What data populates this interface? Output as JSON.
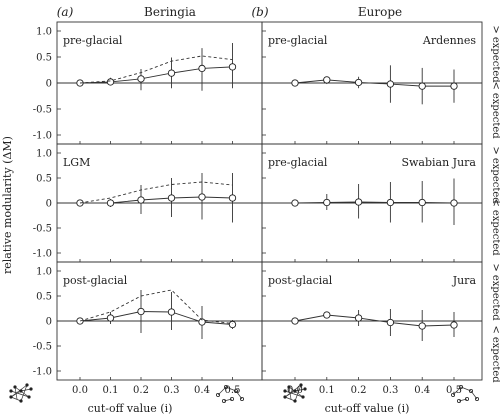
{
  "figure": {
    "y_axis_label": "relative modularity (ΔM)",
    "right_top": "> expected",
    "right_bottom": "< expected",
    "x_axis_label": "cut-off value (i)"
  },
  "chart_data": [
    {
      "type": "line",
      "column": "(a)",
      "column_title": "Beringia",
      "panel_label": "pre-glacial",
      "site": "",
      "x": [
        0.0,
        0.1,
        0.2,
        0.3,
        0.4,
        0.5
      ],
      "xticks": [
        "0.0",
        "0.1",
        "0.2",
        "0.3",
        "0.4",
        "0.5"
      ],
      "ylim": [
        -1.0,
        1.0
      ],
      "yticks": [
        "1.0",
        "0.5",
        "0",
        "-0.5",
        "-1.0"
      ],
      "series": [
        {
          "style": "solid-circles",
          "values": [
            0.0,
            0.02,
            0.08,
            0.19,
            0.28,
            0.31
          ],
          "err_low": [
            0.0,
            -0.03,
            -0.14,
            -0.1,
            -0.15,
            -0.1
          ],
          "err_high": [
            0.0,
            0.1,
            0.27,
            0.49,
            0.67,
            0.77
          ]
        },
        {
          "style": "dashed",
          "values": [
            0.0,
            0.04,
            0.2,
            0.42,
            0.52,
            0.45
          ]
        }
      ]
    },
    {
      "type": "line",
      "column": "(b)",
      "column_title": "Europe",
      "panel_label": "pre-glacial",
      "site": "Ardennes",
      "x": [
        0.0,
        0.1,
        0.2,
        0.3,
        0.4,
        0.5
      ],
      "xticks": [
        "0.0",
        "0.1",
        "0.2",
        "0.3",
        "0.4",
        "0.5"
      ],
      "ylim": [
        -1.0,
        1.0
      ],
      "yticks": [
        "1.0",
        "0.5",
        "0",
        "-0.5",
        "-1.0"
      ],
      "series": [
        {
          "style": "solid-circles",
          "values": [
            0.0,
            0.06,
            0.01,
            -0.02,
            -0.06,
            -0.06
          ],
          "err_low": [
            0.0,
            -0.02,
            -0.1,
            -0.38,
            -0.41,
            -0.38
          ],
          "err_high": [
            0.0,
            0.12,
            0.12,
            0.34,
            0.29,
            0.26
          ]
        }
      ]
    },
    {
      "type": "line",
      "column": "(a)",
      "column_title": "Beringia",
      "panel_label": "LGM",
      "site": "",
      "x": [
        0.0,
        0.1,
        0.2,
        0.3,
        0.4,
        0.5
      ],
      "xticks": [
        "0.0",
        "0.1",
        "0.2",
        "0.3",
        "0.4",
        "0.5"
      ],
      "ylim": [
        -1.0,
        1.0
      ],
      "yticks": [
        "1.0",
        "0.5",
        "0",
        "-0.5",
        "-1.0"
      ],
      "series": [
        {
          "style": "solid-circles",
          "values": [
            0.0,
            0.0,
            0.06,
            0.1,
            0.12,
            0.1
          ],
          "err_low": [
            0.0,
            -0.08,
            -0.22,
            -0.28,
            -0.33,
            -0.39
          ],
          "err_high": [
            0.0,
            0.08,
            0.36,
            0.5,
            0.6,
            0.6
          ]
        },
        {
          "style": "dashed",
          "values": [
            0.0,
            0.1,
            0.26,
            0.37,
            0.42,
            0.36
          ]
        }
      ]
    },
    {
      "type": "line",
      "column": "(b)",
      "column_title": "Europe",
      "panel_label": "pre-glacial",
      "site": "Swabian Jura",
      "x": [
        0.0,
        0.1,
        0.2,
        0.3,
        0.4,
        0.5
      ],
      "xticks": [
        "0.0",
        "0.1",
        "0.2",
        "0.3",
        "0.4",
        "0.5"
      ],
      "ylim": [
        -1.0,
        1.0
      ],
      "yticks": [
        "1.0",
        "0.5",
        "0",
        "-0.5",
        "-1.0"
      ],
      "series": [
        {
          "style": "solid-circles",
          "values": [
            0.0,
            0.01,
            0.02,
            0.01,
            0.01,
            0.0
          ],
          "err_low": [
            0.0,
            -0.14,
            -0.31,
            -0.39,
            -0.39,
            -0.44
          ],
          "err_high": [
            0.0,
            0.18,
            0.38,
            0.42,
            0.44,
            0.49
          ]
        }
      ]
    },
    {
      "type": "line",
      "column": "(a)",
      "column_title": "Beringia",
      "panel_label": "post-glacial",
      "site": "",
      "x": [
        0.0,
        0.1,
        0.2,
        0.3,
        0.4,
        0.5
      ],
      "xticks": [
        "0.0",
        "0.1",
        "0.2",
        "0.3",
        "0.4",
        "0.5"
      ],
      "ylim": [
        -1.0,
        1.0
      ],
      "yticks": [
        "1.0",
        "0.5",
        "0",
        "-0.5",
        "-1.0"
      ],
      "series": [
        {
          "style": "solid-circles",
          "values": [
            0.0,
            0.06,
            0.19,
            0.18,
            -0.02,
            -0.07
          ],
          "err_low": [
            0.0,
            -0.06,
            -0.24,
            -0.18,
            -0.36,
            -0.16
          ],
          "err_high": [
            0.0,
            0.18,
            0.62,
            0.58,
            0.3,
            0.02
          ]
        },
        {
          "style": "dashed",
          "values": [
            0.0,
            0.18,
            0.5,
            0.62,
            0.02,
            -0.05
          ]
        }
      ]
    },
    {
      "type": "line",
      "column": "(b)",
      "column_title": "Europe",
      "panel_label": "post-glacial",
      "site": "Jura",
      "x": [
        0.0,
        0.1,
        0.2,
        0.3,
        0.4,
        0.5
      ],
      "xticks": [
        "0.0",
        "0.1",
        "0.2",
        "0.3",
        "0.4",
        "0.5"
      ],
      "ylim": [
        -1.0,
        1.0
      ],
      "yticks": [
        "1.0",
        "0.5",
        "0",
        "-0.5",
        "-1.0"
      ],
      "series": [
        {
          "style": "solid-circles",
          "values": [
            0.0,
            0.12,
            0.06,
            -0.03,
            -0.1,
            -0.08
          ],
          "err_low": [
            0.0,
            0.06,
            -0.1,
            -0.3,
            -0.4,
            -0.32
          ],
          "err_high": [
            0.0,
            0.18,
            0.22,
            0.24,
            0.22,
            0.18
          ]
        }
      ]
    }
  ]
}
